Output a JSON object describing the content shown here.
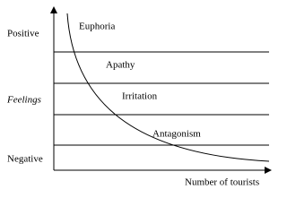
{
  "axes": {
    "y_top": "Positive",
    "y_label": "Feelings",
    "y_bottom": "Negative",
    "x_label": "Number of tourists"
  },
  "stages": [
    "Euphoria",
    "Apathy",
    "Irritation",
    "Antagonism"
  ]
}
